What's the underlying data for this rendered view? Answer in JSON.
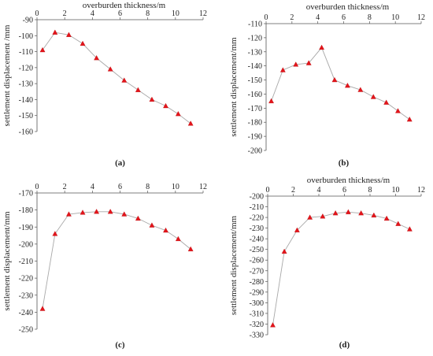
{
  "chart_data": [
    {
      "type": "line",
      "panel_label": "a",
      "xlabel": "overburden thickness/m",
      "ylabel": "settlement displacement /mm",
      "xlim": [
        0,
        12
      ],
      "ylim": [
        -160,
        -90
      ],
      "xticks": [
        0,
        2,
        4,
        6,
        8,
        10,
        12
      ],
      "yticks": [
        -90,
        -100,
        -110,
        -120,
        -130,
        -140,
        -150,
        -160
      ],
      "x_axis_position": "top",
      "marker": "triangle",
      "marker_color": "#e3141b",
      "line_color": "#a8a8a8",
      "series": [
        {
          "x": [
            0.4,
            1.3,
            2.3,
            3.3,
            4.3,
            5.3,
            6.3,
            7.3,
            8.3,
            9.3,
            10.2,
            11.1
          ],
          "y": [
            -109,
            -98,
            -99.5,
            -105,
            -114,
            -121,
            -128,
            -134,
            -140,
            -144,
            -149,
            -155
          ]
        }
      ]
    },
    {
      "type": "line",
      "panel_label": "b",
      "xlabel": "overburden thickness/m",
      "ylabel": "settlement displacement/mm",
      "xlim": [
        0,
        12
      ],
      "ylim": [
        -200,
        -110
      ],
      "xticks": [
        0,
        2,
        4,
        6,
        8,
        10,
        12
      ],
      "yticks": [
        -110,
        -120,
        -130,
        -140,
        -150,
        -160,
        -170,
        -180,
        -190,
        -200
      ],
      "x_axis_position": "top",
      "marker": "triangle",
      "marker_color": "#e3141b",
      "line_color": "#a8a8a8",
      "series": [
        {
          "x": [
            0.4,
            1.3,
            2.3,
            3.3,
            4.3,
            5.3,
            6.3,
            7.3,
            8.3,
            9.3,
            10.2,
            11.1
          ],
          "y": [
            -165,
            -143,
            -139,
            -138,
            -127,
            -150,
            -154,
            -157,
            -162,
            -166,
            -172,
            -178
          ]
        }
      ]
    },
    {
      "type": "line",
      "panel_label": "c",
      "xlabel": "",
      "ylabel": "settlement displacement/mm",
      "xlim": [
        0,
        12
      ],
      "ylim": [
        -250,
        -170
      ],
      "xticks": [
        0,
        2,
        4,
        6,
        8,
        10,
        12
      ],
      "yticks": [
        -170,
        -180,
        -190,
        -200,
        -210,
        -220,
        -230,
        -240,
        -250
      ],
      "x_axis_position": "top",
      "marker": "triangle",
      "marker_color": "#e3141b",
      "line_color": "#a8a8a8",
      "series": [
        {
          "x": [
            0.4,
            1.3,
            2.3,
            3.3,
            4.3,
            5.3,
            6.3,
            7.3,
            8.3,
            9.3,
            10.2,
            11.1
          ],
          "y": [
            -238,
            -194,
            -182.5,
            -181.5,
            -181,
            -181,
            -182.5,
            -185,
            -189,
            -192,
            -197,
            -203
          ]
        }
      ]
    },
    {
      "type": "line",
      "panel_label": "d",
      "xlabel": "overburden thickness/m",
      "ylabel": "settlement displacement/mm",
      "xlim": [
        0,
        12
      ],
      "ylim": [
        -330,
        -200
      ],
      "xticks": [
        0,
        2,
        4,
        6,
        8,
        10,
        12
      ],
      "yticks": [
        -200,
        -210,
        -220,
        -230,
        -240,
        -250,
        -260,
        -270,
        -280,
        -290,
        -300,
        -310,
        -320,
        -330
      ],
      "x_axis_position": "top",
      "marker": "triangle",
      "marker_color": "#e3141b",
      "line_color": "#a8a8a8",
      "series": [
        {
          "x": [
            0.4,
            1.3,
            2.3,
            3.3,
            4.3,
            5.3,
            6.3,
            7.3,
            8.3,
            9.3,
            10.2,
            11.1
          ],
          "y": [
            -321,
            -252,
            -232,
            -220,
            -219,
            -216,
            -215,
            -216,
            -218,
            -221,
            -226,
            -231
          ]
        }
      ]
    }
  ]
}
